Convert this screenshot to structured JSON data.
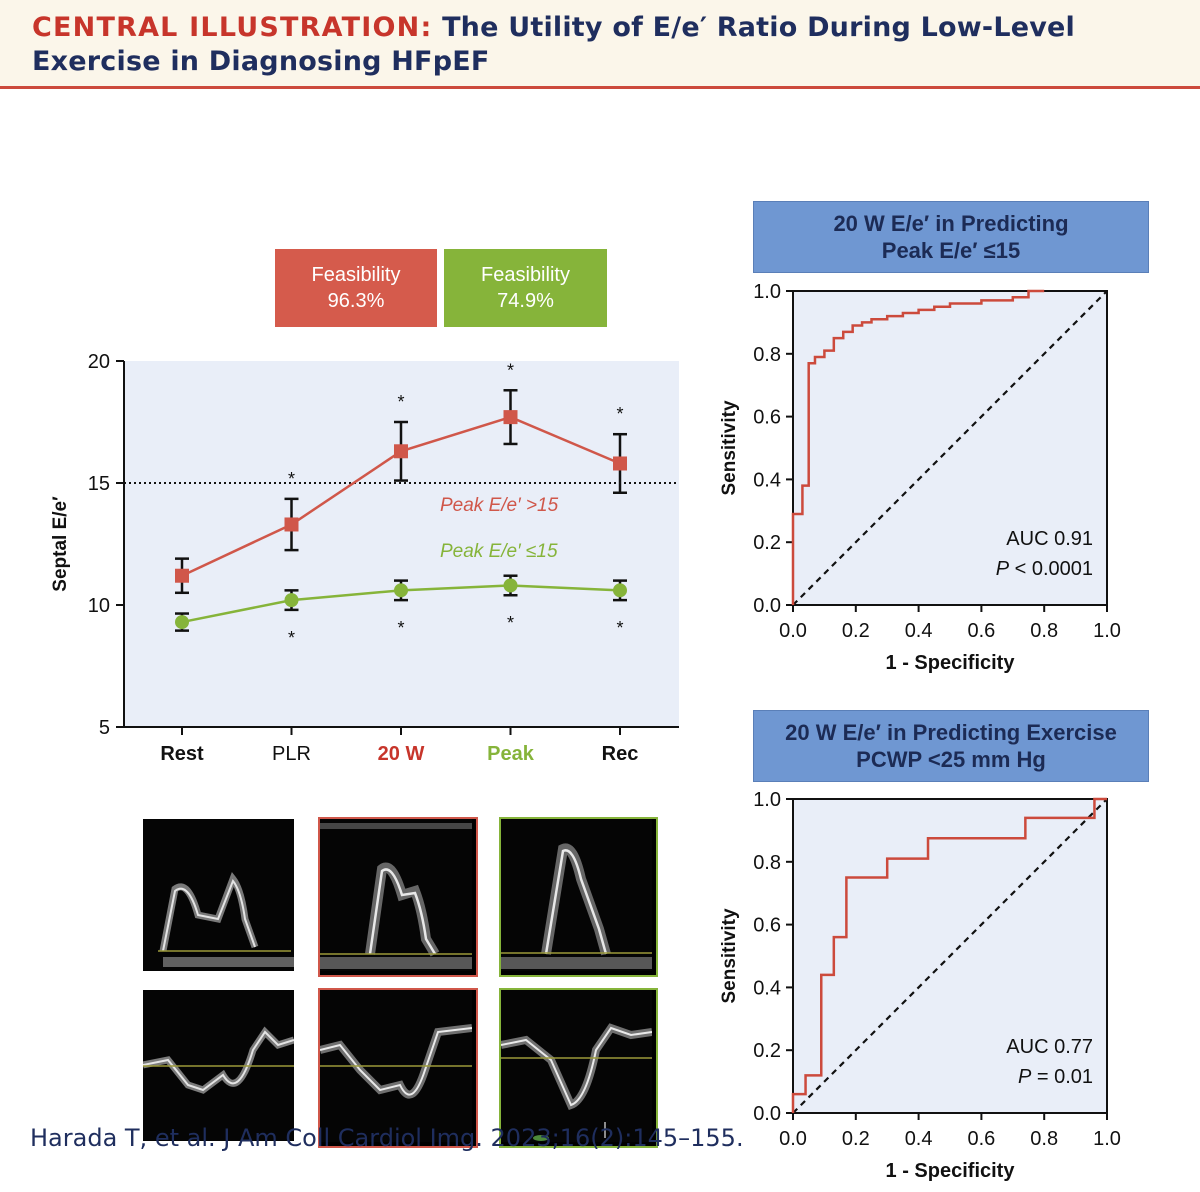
{
  "header": {
    "kicker": "CENTRAL ILLUSTRATION:",
    "title_line1": "The Utility of E/e′ Ratio During Low-Level",
    "title_line2": "Exercise in Diagnosing HFpEF"
  },
  "feasibility": [
    {
      "label": "Feasibility",
      "value": "96.3%",
      "color": "#d55b4c"
    },
    {
      "label": "Feasibility",
      "value": "74.9%",
      "color": "#86b43a"
    }
  ],
  "chart_data": [
    {
      "type": "line",
      "ylabel": "Septal E/e′",
      "ylim": [
        5,
        20
      ],
      "yticks": [
        "5",
        "10",
        "15",
        "20"
      ],
      "categories": [
        "Rest",
        "PLR",
        "20 W",
        "Peak",
        "Rec"
      ],
      "category_colors": [
        "#111111",
        "#111111",
        "#c7352b",
        "#86b43a",
        "#111111"
      ],
      "reference_line": 15,
      "series": [
        {
          "name": "Peak E/e′ >15",
          "color": "#d0574a",
          "marker": "square",
          "values": [
            11.2,
            13.3,
            16.3,
            17.7,
            15.8
          ],
          "errors": [
            0.7,
            1.05,
            1.2,
            1.1,
            1.2
          ],
          "significance": [
            "",
            "*",
            "*",
            "*",
            "*"
          ]
        },
        {
          "name": "Peak E/e′ ≤15",
          "color": "#86b43a",
          "marker": "circle",
          "values": [
            9.3,
            10.2,
            10.6,
            10.8,
            10.6
          ],
          "errors": [
            0.35,
            0.4,
            0.4,
            0.4,
            0.4
          ],
          "significance": [
            "",
            "*",
            "*",
            "*",
            "*"
          ]
        }
      ],
      "grid": false,
      "background": "#e9eef8"
    },
    {
      "type": "line",
      "title": "20 W E/e′ in Predicting Peak E/e′ ≤15",
      "xlabel": "1 - Specificity",
      "ylabel": "Sensitivity",
      "xlim": [
        0,
        1
      ],
      "ylim": [
        0,
        1
      ],
      "ticks": [
        "0.0",
        "0.2",
        "0.4",
        "0.6",
        "0.8",
        "1.0"
      ],
      "auc": "AUC 0.91",
      "p_label": "P",
      "p_value": " < 0.0001",
      "series": [
        {
          "color": "#cc4a3c",
          "x": [
            0,
            0,
            0.03,
            0.03,
            0.05,
            0.05,
            0.07,
            0.07,
            0.1,
            0.1,
            0.13,
            0.13,
            0.16,
            0.16,
            0.19,
            0.19,
            0.22,
            0.22,
            0.25,
            0.25,
            0.3,
            0.3,
            0.35,
            0.35,
            0.4,
            0.4,
            0.45,
            0.45,
            0.5,
            0.5,
            0.6,
            0.6,
            0.7,
            0.7,
            0.75,
            0.75,
            0.8
          ],
          "y": [
            0,
            0.29,
            0.29,
            0.38,
            0.38,
            0.77,
            0.77,
            0.79,
            0.79,
            0.81,
            0.81,
            0.85,
            0.85,
            0.87,
            0.87,
            0.89,
            0.89,
            0.9,
            0.9,
            0.91,
            0.91,
            0.92,
            0.92,
            0.93,
            0.93,
            0.94,
            0.94,
            0.95,
            0.95,
            0.96,
            0.96,
            0.97,
            0.97,
            0.98,
            0.98,
            1.0,
            1.0
          ]
        }
      ]
    },
    {
      "type": "line",
      "title": "20 W E/e′ in Predicting Exercise PCWP <25 mm Hg",
      "xlabel": "1 - Specificity",
      "ylabel": "Sensitivity",
      "xlim": [
        0,
        1
      ],
      "ylim": [
        0,
        1
      ],
      "ticks": [
        "0.0",
        "0.2",
        "0.4",
        "0.6",
        "0.8",
        "1.0"
      ],
      "auc": "AUC 0.77",
      "p_label": "P",
      "p_value": " = 0.01",
      "series": [
        {
          "color": "#cc4a3c",
          "x": [
            0,
            0,
            0.04,
            0.04,
            0.09,
            0.09,
            0.13,
            0.13,
            0.17,
            0.17,
            0.3,
            0.3,
            0.43,
            0.43,
            0.74,
            0.74,
            0.96,
            0.96,
            1.0
          ],
          "y": [
            0,
            0.06,
            0.06,
            0.12,
            0.12,
            0.44,
            0.44,
            0.56,
            0.56,
            0.75,
            0.75,
            0.81,
            0.81,
            0.875,
            0.875,
            0.94,
            0.94,
            1.0,
            1.0
          ]
        }
      ]
    }
  ],
  "roc1": {
    "title_line1": "20 W E/e′ in Predicting",
    "title_line2": "Peak E/e′ ≤15"
  },
  "roc2": {
    "title_line1": "20 W E/e′ in Predicting Exercise",
    "title_line2": "PCWP <25 mm Hg"
  },
  "echo_panels": {
    "border_colors": [
      "#000000",
      "#d0574a",
      "#86b43a"
    ]
  },
  "citation": "Harada T, et al. J Am Coll Cardiol Img. 2023;16(2):145–155."
}
